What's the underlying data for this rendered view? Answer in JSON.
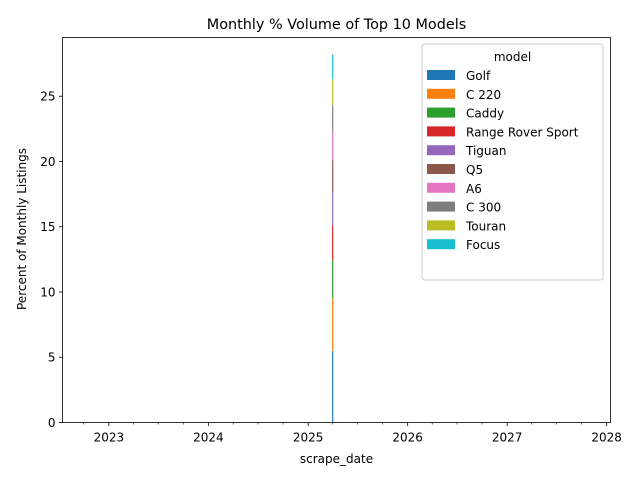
{
  "chart_data": {
    "type": "area",
    "stacked": true,
    "title": "Monthly % Volume of Top 10 Models",
    "xlabel": "scrape_date",
    "ylabel": "Percent of Monthly Listings",
    "x_type": "date",
    "xlim": [
      "2022-07-15",
      "2028-01-15"
    ],
    "ylim": [
      0,
      29.5
    ],
    "x_ticks": [
      {
        "date": "2023-01-01",
        "label": "2023"
      },
      {
        "date": "2024-01-01",
        "label": "2024"
      },
      {
        "date": "2025-01-01",
        "label": "2025"
      },
      {
        "date": "2026-01-01",
        "label": "2026"
      },
      {
        "date": "2027-01-01",
        "label": "2027"
      },
      {
        "date": "2028-01-01",
        "label": "2028"
      }
    ],
    "y_ticks": [
      0,
      5,
      10,
      15,
      20,
      25
    ],
    "grid": false,
    "x": [
      "2025-04-01"
    ],
    "legend": {
      "title": "model",
      "placement": "upper right"
    },
    "series": [
      {
        "name": "Golf",
        "color": "#1f77b4",
        "values": [
          5.5
        ]
      },
      {
        "name": "C 220",
        "color": "#ff7f0e",
        "values": [
          4.0
        ]
      },
      {
        "name": "Caddy",
        "color": "#2ca02c",
        "values": [
          2.9
        ]
      },
      {
        "name": "Range Rover Sport",
        "color": "#d62728",
        "values": [
          2.7
        ]
      },
      {
        "name": "Tiguan",
        "color": "#9467bd",
        "values": [
          2.5
        ]
      },
      {
        "name": "Q5",
        "color": "#8c564b",
        "values": [
          2.5
        ]
      },
      {
        "name": "A6",
        "color": "#e377c2",
        "values": [
          2.2
        ]
      },
      {
        "name": "C 300",
        "color": "#7f7f7f",
        "values": [
          2.0
        ]
      },
      {
        "name": "Touran",
        "color": "#bcbd22",
        "values": [
          2.0
        ]
      },
      {
        "name": "Focus",
        "color": "#17becf",
        "values": [
          1.9
        ]
      }
    ]
  }
}
